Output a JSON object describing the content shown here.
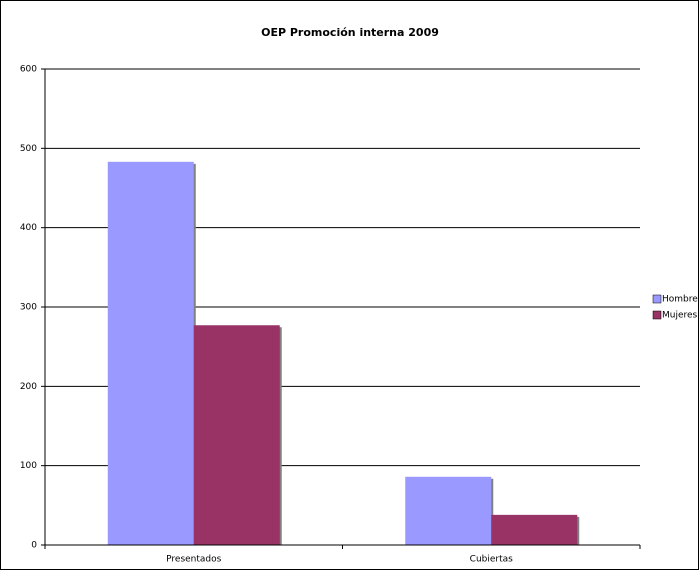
{
  "chart_data": {
    "type": "bar",
    "title": "OEP Promoción interna 2009",
    "categories": [
      "Presentados",
      "Cubiertas"
    ],
    "series": [
      {
        "name": "Hombres",
        "color": "#9999ff",
        "values": [
          483,
          86
        ]
      },
      {
        "name": "Mujeres",
        "color": "#993366",
        "values": [
          277,
          38
        ]
      }
    ],
    "ylim": [
      0,
      600
    ],
    "yticks": [
      0,
      100,
      200,
      300,
      400,
      500,
      600
    ],
    "grid": true,
    "legend": "right"
  }
}
